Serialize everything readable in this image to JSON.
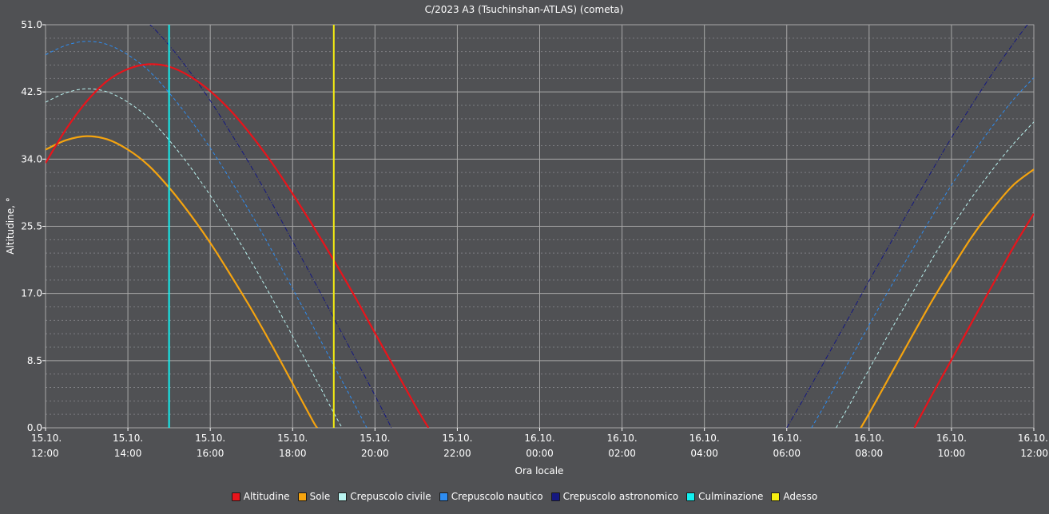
{
  "chart_data": {
    "type": "line",
    "title": "C/2023 A3 (Tsuchinshan-ATLAS) (cometa)",
    "xlabel": "Ora locale",
    "ylabel": "Altitudine, °",
    "x_unit": "hours",
    "xlim": [
      12,
      36
    ],
    "ylim": [
      0,
      51
    ],
    "yticks": [
      0.0,
      8.5,
      17.0,
      25.5,
      34.0,
      42.5,
      51.0
    ],
    "ytick_labels": [
      "0.0",
      "8.5",
      "17.0",
      "25.5",
      "34.0",
      "42.5",
      "51.0"
    ],
    "xticks": [
      12,
      14,
      16,
      18,
      20,
      22,
      24,
      26,
      28,
      30,
      32,
      34,
      36
    ],
    "xtick_labels": [
      [
        "15.10.",
        "12:00"
      ],
      [
        "15.10.",
        "14:00"
      ],
      [
        "15.10.",
        "16:00"
      ],
      [
        "15.10.",
        "18:00"
      ],
      [
        "15.10.",
        "20:00"
      ],
      [
        "15.10.",
        "22:00"
      ],
      [
        "16.10.",
        "00:00"
      ],
      [
        "16.10.",
        "02:00"
      ],
      [
        "16.10.",
        "04:00"
      ],
      [
        "16.10.",
        "06:00"
      ],
      [
        "16.10.",
        "08:00"
      ],
      [
        "16.10.",
        "10:00"
      ],
      [
        "16.10.",
        "12:00"
      ]
    ],
    "grid": true,
    "legend_position": "bottom-center",
    "series": [
      {
        "name": "Altitudine",
        "color": "#e8141b",
        "style": "solid",
        "points": [
          [
            12,
            33.5
          ],
          [
            12.5,
            37.8
          ],
          [
            13,
            41.3
          ],
          [
            13.5,
            43.9
          ],
          [
            14,
            45.4
          ],
          [
            14.5,
            46.0
          ],
          [
            15,
            45.7
          ],
          [
            15.5,
            44.5
          ],
          [
            16,
            42.6
          ],
          [
            16.5,
            40.1
          ],
          [
            17,
            37.0
          ],
          [
            17.5,
            33.5
          ],
          [
            18,
            29.6
          ],
          [
            18.5,
            25.5
          ],
          [
            19,
            21.2
          ],
          [
            19.5,
            16.7
          ],
          [
            20,
            12.0
          ],
          [
            20.5,
            7.3
          ],
          [
            21,
            2.6
          ],
          [
            21.3,
            0
          ]
        ],
        "points2": [
          [
            33.1,
            0
          ],
          [
            33.5,
            3.9
          ],
          [
            34,
            8.6
          ],
          [
            34.5,
            13.4
          ],
          [
            35,
            18.1
          ],
          [
            35.5,
            22.8
          ],
          [
            36,
            27.1
          ]
        ]
      },
      {
        "name": "Sole",
        "color": "#f5a40f",
        "style": "solid",
        "points": [
          [
            12,
            35.2
          ],
          [
            12.5,
            36.4
          ],
          [
            13,
            36.9
          ],
          [
            13.5,
            36.5
          ],
          [
            14,
            35.2
          ],
          [
            14.5,
            33.2
          ],
          [
            15,
            30.4
          ],
          [
            15.5,
            27.1
          ],
          [
            16,
            23.4
          ],
          [
            16.5,
            19.3
          ],
          [
            17,
            15.0
          ],
          [
            17.5,
            10.4
          ],
          [
            18,
            5.6
          ],
          [
            18.5,
            0.8
          ],
          [
            18.6,
            0
          ]
        ],
        "points2": [
          [
            31.8,
            0
          ],
          [
            32,
            1.8
          ],
          [
            32.5,
            6.5
          ],
          [
            33,
            11.2
          ],
          [
            33.5,
            15.8
          ],
          [
            34,
            20.1
          ],
          [
            34.5,
            24.2
          ],
          [
            35,
            27.7
          ],
          [
            35.5,
            30.7
          ],
          [
            36,
            32.7
          ]
        ]
      },
      {
        "name": "Crepuscolo civile",
        "color": "#b9f2ef",
        "style": "dashed",
        "points": [
          [
            12,
            41.2
          ],
          [
            12.5,
            42.4
          ],
          [
            13,
            42.9
          ],
          [
            13.5,
            42.5
          ],
          [
            14,
            41.2
          ],
          [
            14.5,
            39.2
          ],
          [
            15,
            36.4
          ],
          [
            15.5,
            33.1
          ],
          [
            16,
            29.4
          ],
          [
            16.5,
            25.3
          ],
          [
            17,
            21.0
          ],
          [
            17.5,
            16.4
          ],
          [
            18,
            11.6
          ],
          [
            18.5,
            6.8
          ],
          [
            19,
            1.9
          ],
          [
            19.2,
            0
          ]
        ],
        "points2": [
          [
            31.2,
            0
          ],
          [
            31.5,
            2.7
          ],
          [
            32,
            7.4
          ],
          [
            32.5,
            12.1
          ],
          [
            33,
            16.6
          ],
          [
            33.5,
            21.1
          ],
          [
            34,
            25.3
          ],
          [
            34.5,
            29.2
          ],
          [
            35,
            32.7
          ],
          [
            35.5,
            35.9
          ],
          [
            36,
            38.7
          ]
        ]
      },
      {
        "name": "Crepuscolo nautico",
        "color": "#2e8cf0",
        "style": "dashed",
        "points": [
          [
            12,
            47.2
          ],
          [
            12.5,
            48.4
          ],
          [
            13,
            48.9
          ],
          [
            13.5,
            48.5
          ],
          [
            14,
            47.2
          ],
          [
            14.5,
            45.2
          ],
          [
            15,
            42.4
          ],
          [
            15.5,
            39.1
          ],
          [
            16,
            35.4
          ],
          [
            16.5,
            31.3
          ],
          [
            17,
            27.0
          ],
          [
            17.5,
            22.4
          ],
          [
            18,
            17.6
          ],
          [
            18.5,
            12.8
          ],
          [
            19,
            7.9
          ],
          [
            19.5,
            3.0
          ],
          [
            19.8,
            0
          ]
        ],
        "points2": [
          [
            30.6,
            0
          ],
          [
            31,
            3.6
          ],
          [
            31.5,
            8.3
          ],
          [
            32,
            13.0
          ],
          [
            32.5,
            17.6
          ],
          [
            33,
            22.1
          ],
          [
            33.5,
            26.5
          ],
          [
            34,
            30.7
          ],
          [
            34.5,
            34.6
          ],
          [
            35,
            38.2
          ],
          [
            35.5,
            41.5
          ],
          [
            36,
            44.3
          ]
        ]
      },
      {
        "name": "Crepuscolo astronomico",
        "color": "#151880",
        "style": "dashdot",
        "points": [
          [
            12,
            53.2
          ],
          [
            12.5,
            54.4
          ],
          [
            13,
            54.9
          ],
          [
            13.5,
            54.5
          ],
          [
            14,
            53.2
          ],
          [
            14.5,
            51.2
          ],
          [
            15,
            48.4
          ],
          [
            15.5,
            45.1
          ],
          [
            16,
            41.4
          ],
          [
            16.5,
            37.3
          ],
          [
            17,
            33.0
          ],
          [
            17.5,
            28.4
          ],
          [
            18,
            23.6
          ],
          [
            18.5,
            18.8
          ],
          [
            19,
            13.9
          ],
          [
            19.5,
            9.0
          ],
          [
            20,
            4.1
          ],
          [
            20.4,
            0
          ]
        ],
        "points2": [
          [
            30.0,
            0
          ],
          [
            30.5,
            4.5
          ],
          [
            31,
            9.2
          ],
          [
            31.5,
            13.9
          ],
          [
            32,
            18.6
          ],
          [
            32.5,
            23.2
          ],
          [
            33,
            27.8
          ],
          [
            33.5,
            32.3
          ],
          [
            34,
            36.7
          ],
          [
            34.5,
            40.9
          ],
          [
            35,
            44.9
          ],
          [
            35.5,
            48.6
          ],
          [
            36,
            52.1
          ]
        ]
      }
    ],
    "markers": [
      {
        "name": "Culminazione",
        "color": "#12f0f0",
        "x": 15.0
      },
      {
        "name": "Adesso",
        "color": "#f6ee10",
        "x": 19.0
      }
    ],
    "legend": [
      {
        "label": "Altitudine",
        "color": "#e8141b"
      },
      {
        "label": "Sole",
        "color": "#f5a40f"
      },
      {
        "label": "Crepuscolo civile",
        "color": "#b9f2ef"
      },
      {
        "label": "Crepuscolo nautico",
        "color": "#2e8cf0"
      },
      {
        "label": "Crepuscolo astronomico",
        "color": "#151880"
      },
      {
        "label": "Culminazione",
        "color": "#12f0f0"
      },
      {
        "label": "Adesso",
        "color": "#f6ee10"
      }
    ]
  }
}
